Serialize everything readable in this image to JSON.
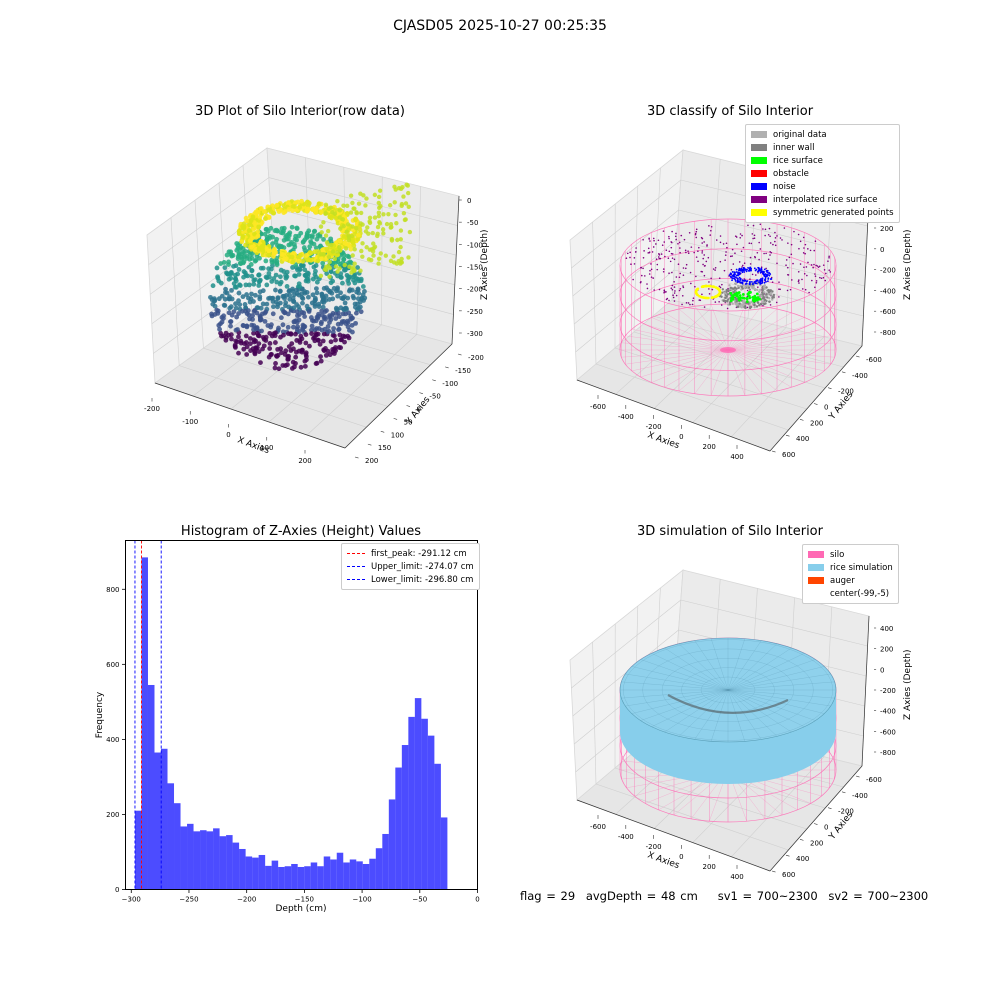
{
  "suptitle": "CJASD05 2025-10-27 00:25:35",
  "panel_raw": {
    "title": "3D Plot of Silo Interior(row data)",
    "xlabel": "X Axies",
    "ylabel": "Y Axies",
    "zlabel": "Z Axies (Depth)",
    "x_ticks": [
      "-200",
      "-100",
      "0",
      "100",
      "200"
    ],
    "y_ticks": [
      "200",
      "150",
      "100",
      "50",
      "0",
      "-50",
      "-100",
      "-150",
      "-200"
    ],
    "z_ticks": [
      "0",
      "-50",
      "-100",
      "-150",
      "-200",
      "-250",
      "-300"
    ]
  },
  "panel_classify": {
    "title": "3D classify of Silo Interior",
    "xlabel": "X Axies",
    "ylabel": "Y Axies",
    "zlabel": "Z Axies (Depth)",
    "x_ticks": [
      "-600",
      "-400",
      "-200",
      "0",
      "200",
      "400"
    ],
    "y_ticks": [
      "600",
      "400",
      "200",
      "0",
      "-200",
      "-400",
      "-600"
    ],
    "z_ticks": [
      "200",
      "0",
      "-200",
      "-400",
      "-600",
      "-800"
    ],
    "legend": [
      {
        "label": "original data",
        "color": "#b0b0b0"
      },
      {
        "label": "inner wall",
        "color": "#808080"
      },
      {
        "label": "rice surface",
        "color": "#00ff00"
      },
      {
        "label": "obstacle",
        "color": "#ff0000"
      },
      {
        "label": "noise",
        "color": "#0000ff"
      },
      {
        "label": "interpolated rice surface",
        "color": "#800080"
      },
      {
        "label": "symmetric generated points",
        "color": "#ffff00"
      }
    ]
  },
  "panel_hist": {
    "title": "Histogram of Z-Axies (Height) Values",
    "xlabel": "Depth (cm)",
    "ylabel": "Frequency",
    "legend": [
      {
        "label": "first_peak: -291.12 cm",
        "color": "#ff0000"
      },
      {
        "label": "Upper_limit: -274.07 cm",
        "color": "#0000ff"
      },
      {
        "label": "Lower_limit: -296.80 cm",
        "color": "#0000ff"
      }
    ]
  },
  "panel_sim": {
    "title": "3D simulation of Silo Interior",
    "xlabel": "X Axies",
    "ylabel": "Y Axies",
    "zlabel": "Z Axies (Depth)",
    "x_ticks": [
      "-600",
      "-400",
      "-200",
      "0",
      "200",
      "400"
    ],
    "y_ticks": [
      "600",
      "400",
      "200",
      "0",
      "-200",
      "-400",
      "-600"
    ],
    "z_ticks": [
      "400",
      "200",
      "0",
      "-200",
      "-400",
      "-600",
      "-800"
    ],
    "legend": [
      {
        "label": "silo",
        "color": "#ff69b4"
      },
      {
        "label": "rice simulation",
        "color": "#87ceeb"
      },
      {
        "label": "auger",
        "color": "#ff4500"
      },
      {
        "label": "center(-99,-5)",
        "color": ""
      }
    ]
  },
  "status": {
    "flag": "flag = 29",
    "avg_depth": "avgDepth = 48 cm",
    "sv1": "sv1 = 700~2300",
    "sv2": "sv2 = 700~2300"
  },
  "chart_data": [
    {
      "type": "scatter",
      "title": "3D Plot of Silo Interior(row data)",
      "xlabel": "X Axies",
      "ylabel": "Y Axies",
      "zlabel": "Z Axies (Depth)",
      "xlim": [
        -200,
        200
      ],
      "ylim": [
        -200,
        200
      ],
      "zlim": [
        -300,
        0
      ]
    },
    {
      "type": "scatter",
      "title": "3D classify of Silo Interior",
      "xlabel": "X Axies",
      "ylabel": "Y Axies",
      "zlabel": "Z Axies (Depth)",
      "xlim": [
        -600,
        400
      ],
      "ylim": [
        -600,
        600
      ],
      "zlim": [
        -800,
        200
      ],
      "series": [
        {
          "name": "original data"
        },
        {
          "name": "inner wall"
        },
        {
          "name": "rice surface"
        },
        {
          "name": "obstacle"
        },
        {
          "name": "noise"
        },
        {
          "name": "interpolated rice surface"
        },
        {
          "name": "symmetric generated points"
        }
      ]
    },
    {
      "type": "bar",
      "title": "Histogram of Z-Axies (Height) Values",
      "xlabel": "Depth (cm)",
      "ylabel": "Frequency",
      "xlim": [
        -305,
        0
      ],
      "ylim": [
        0,
        930
      ],
      "x_ticks": [
        -300,
        -250,
        -200,
        -150,
        -100,
        -50,
        0
      ],
      "y_ticks": [
        0,
        200,
        400,
        600,
        800
      ],
      "bin_start": -296.8,
      "bin_width": 5.64,
      "values": [
        210,
        885,
        545,
        365,
        375,
        283,
        230,
        168,
        175,
        155,
        158,
        155,
        163,
        142,
        145,
        125,
        108,
        88,
        85,
        92,
        63,
        77,
        60,
        62,
        68,
        60,
        62,
        72,
        62,
        88,
        80,
        98,
        72,
        80,
        75,
        68,
        82,
        110,
        148,
        240,
        325,
        385,
        460,
        510,
        455,
        410,
        335,
        192
      ],
      "vlines": [
        {
          "name": "first_peak: -291.12 cm",
          "x": -291.12
        },
        {
          "name": "Upper_limit: -274.07 cm",
          "x": -274.07
        },
        {
          "name": "Lower_limit: -296.80 cm",
          "x": -296.8
        }
      ]
    },
    {
      "type": "area",
      "title": "3D simulation of Silo Interior",
      "xlabel": "X Axies",
      "ylabel": "Y Axies",
      "zlabel": "Z Axies (Depth)",
      "xlim": [
        -600,
        400
      ],
      "ylim": [
        -600,
        600
      ],
      "zlim": [
        -800,
        400
      ],
      "series": [
        {
          "name": "silo"
        },
        {
          "name": "rice simulation"
        },
        {
          "name": "auger"
        }
      ]
    }
  ]
}
